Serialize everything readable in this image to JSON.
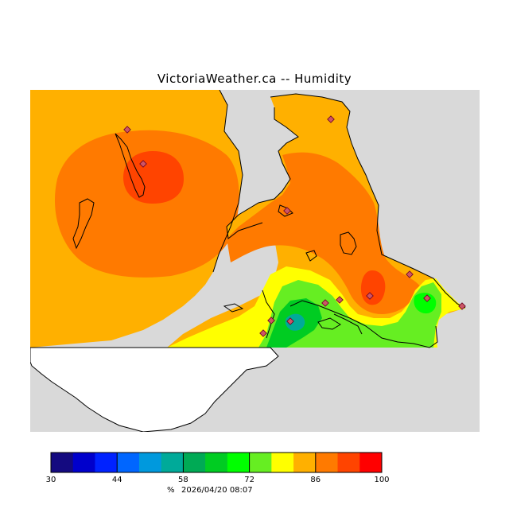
{
  "header": {
    "title": "VictoriaWeather.ca -- Humidity"
  },
  "map": {
    "colors": {
      "ocean": "#d9d9d9",
      "land_unshaded": "#ffffff",
      "coast": "#000000",
      "station": "#cc5566"
    }
  },
  "legend": {
    "colors": [
      "#140a80",
      "#0000cc",
      "#0022ff",
      "#0066ff",
      "#0099dd",
      "#00aa99",
      "#00aa55",
      "#00cc22",
      "#00ff00",
      "#66ee22",
      "#ffff00",
      "#ffb000",
      "#ff7a00",
      "#ff4400",
      "#ff0000"
    ],
    "ticks": [
      "30",
      "44",
      "58",
      "72",
      "86",
      "100"
    ],
    "min": 30,
    "max": 100,
    "unit": "%",
    "timestamp": "2026/04/20 08:07"
  }
}
